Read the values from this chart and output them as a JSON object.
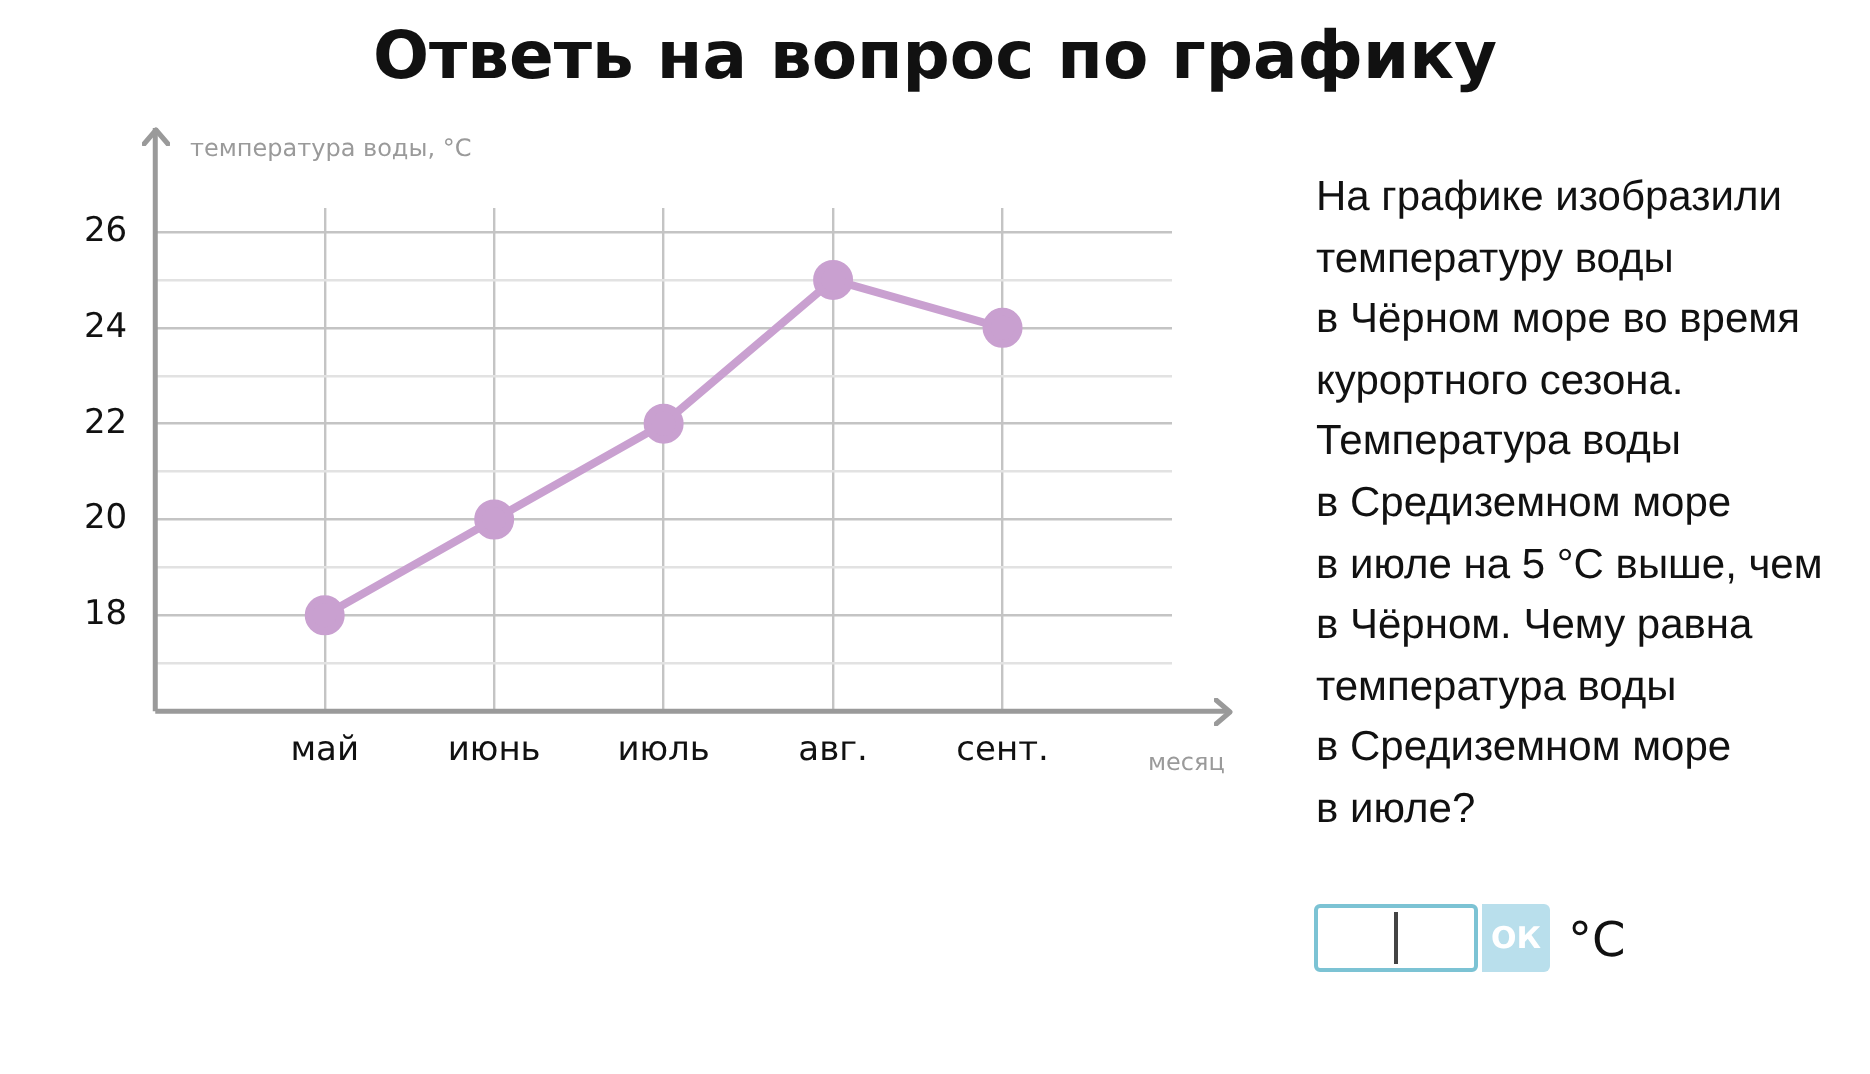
{
  "chart_data": {
    "type": "line",
    "title": "Ответь на вопрос по графику",
    "xlabel": "месяц",
    "ylabel": "температура воды, °C",
    "categories": [
      "май",
      "июнь",
      "июль",
      "авг.",
      "сент."
    ],
    "series": [
      {
        "color": "#c9a0d0",
        "values": [
          18,
          20,
          22,
          25,
          24
        ]
      }
    ],
    "ylim": [
      16,
      26.5
    ],
    "yticks": [
      {
        "value": 17,
        "label": null
      },
      18,
      {
        "value": 19,
        "label": null
      },
      20,
      {
        "value": 21,
        "label": null
      },
      22,
      {
        "value": 23,
        "label": null
      },
      24,
      {
        "value": 25,
        "label": null
      },
      26
    ],
    "grid": true,
    "legend": false,
    "marker": "circle",
    "line_style": "solid",
    "annotations": [
      "На графике изобразили\nтемпературу воды\nв Чёрном море во время\nкурортного сезона.\nТемпература воды\nв Средиземном море\nв июле на 5 °C выше, чем\nв Чёрном. Чему равна\nтемпература воды\nв Средиземном море\nв июле?",
      "ОК",
      "°C"
    ]
  }
}
